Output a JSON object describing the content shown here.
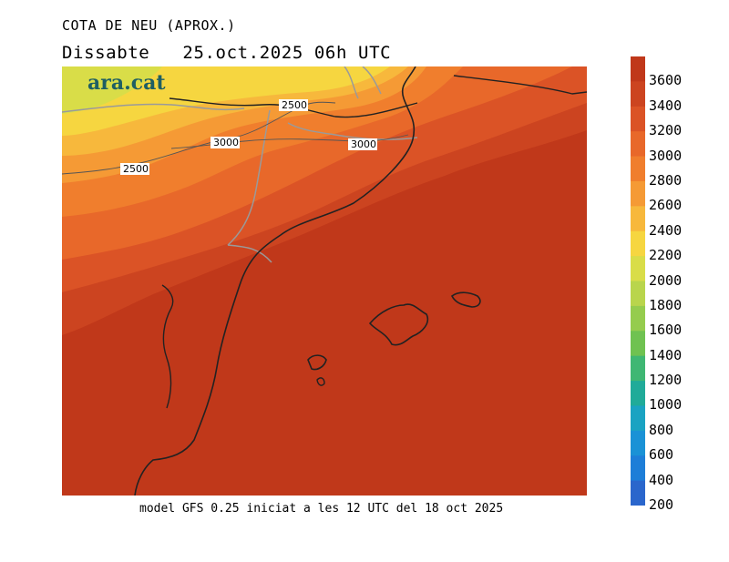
{
  "title": "COTA DE NEU (APROX.)",
  "subtitle": "Dissabte   25.oct.2025 06h UTC",
  "logo": "ara.cat",
  "footer": "model GFS 0.25 iniciat a les 12 UTC del 18 oct 2025",
  "contour_labels": [
    "2500",
    "3000",
    "3000",
    "2500"
  ],
  "colorbar": {
    "ticks": [
      "3600",
      "3400",
      "3200",
      "3000",
      "2800",
      "2600",
      "2400",
      "2200",
      "2000",
      "1800",
      "1600",
      "1400",
      "1200",
      "1000",
      "800",
      "600",
      "400",
      "200"
    ],
    "colors": [
      "#c0381a",
      "#cc4420",
      "#db5326",
      "#e8682a",
      "#f07e2d",
      "#f59a35",
      "#f7b83c",
      "#f6d640",
      "#d9dd48",
      "#b9d54c",
      "#95cc4e",
      "#6fc251",
      "#3fb773",
      "#20ab99",
      "#1aa3c2",
      "#1a92d6",
      "#1d7ed8",
      "#2a66cc"
    ]
  }
}
